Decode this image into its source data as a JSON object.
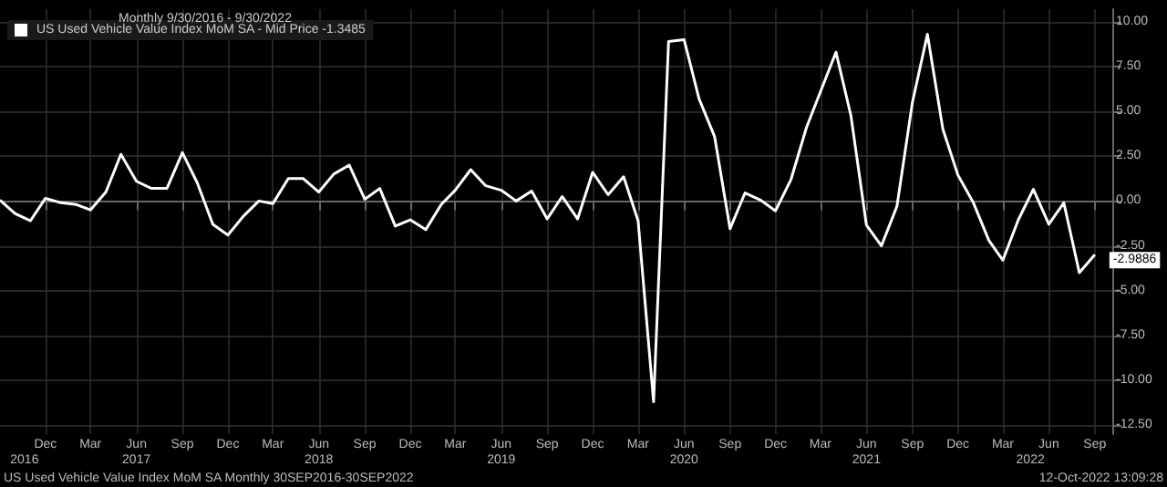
{
  "chart_data": {
    "type": "line",
    "title": "Monthly 9/30/2016 - 9/30/2022",
    "x": [
      "2016-09",
      "2016-10",
      "2016-11",
      "2016-12",
      "2017-01",
      "2017-02",
      "2017-03",
      "2017-04",
      "2017-05",
      "2017-06",
      "2017-07",
      "2017-08",
      "2017-09",
      "2017-10",
      "2017-11",
      "2017-12",
      "2018-01",
      "2018-02",
      "2018-03",
      "2018-04",
      "2018-05",
      "2018-06",
      "2018-07",
      "2018-08",
      "2018-09",
      "2018-10",
      "2018-11",
      "2018-12",
      "2019-01",
      "2019-02",
      "2019-03",
      "2019-04",
      "2019-05",
      "2019-06",
      "2019-07",
      "2019-08",
      "2019-09",
      "2019-10",
      "2019-11",
      "2019-12",
      "2020-01",
      "2020-02",
      "2020-03",
      "2020-04",
      "2020-05",
      "2020-06",
      "2020-07",
      "2020-08",
      "2020-09",
      "2020-10",
      "2020-11",
      "2020-12",
      "2021-01",
      "2021-02",
      "2021-03",
      "2021-04",
      "2021-05",
      "2021-06",
      "2021-07",
      "2021-08",
      "2021-09",
      "2021-10",
      "2021-11",
      "2021-12",
      "2022-01",
      "2022-02",
      "2022-03",
      "2022-04",
      "2022-05",
      "2022-06",
      "2022-07",
      "2022-08",
      "2022-09"
    ],
    "series": [
      {
        "name": "US Used Vehicle Value Index MoM SA - Mid Price -1.3485",
        "color": "#ffffff",
        "values": [
          0.05,
          -0.7,
          -1.1,
          0.15,
          -0.1,
          -0.2,
          -0.5,
          0.5,
          2.6,
          1.1,
          0.7,
          0.7,
          2.7,
          1.0,
          -1.3,
          -1.9,
          -0.85,
          0.0,
          -0.15,
          1.25,
          1.25,
          0.5,
          1.5,
          2.0,
          0.1,
          0.7,
          -1.4,
          -1.05,
          -1.6,
          -0.2,
          0.6,
          1.75,
          0.85,
          0.6,
          0.0,
          0.55,
          -1.0,
          0.25,
          -1.0,
          1.6,
          0.35,
          1.35,
          -1.1,
          -11.2,
          8.9,
          9.0,
          5.7,
          3.6,
          -1.55,
          0.45,
          0.05,
          -0.55,
          1.2,
          4.1,
          6.1,
          8.3,
          4.75,
          -1.35,
          -2.5,
          -0.3,
          5.5,
          9.3,
          4.0,
          1.45,
          -0.1,
          -2.2,
          -3.3,
          -1.05,
          0.65,
          -1.3,
          -0.1,
          -4.0,
          -2.9886
        ],
        "value_labels": [
          null,
          null,
          null,
          null,
          null,
          null,
          null,
          null,
          null,
          null,
          null,
          null,
          null,
          null,
          null,
          null,
          null,
          null,
          null,
          null,
          null,
          null,
          null,
          null,
          null,
          null,
          null,
          null,
          null,
          null,
          null,
          null,
          null,
          null,
          null,
          null,
          null,
          null,
          null,
          null,
          null,
          null,
          null,
          null,
          null,
          null,
          null,
          null,
          null,
          null,
          null,
          null,
          null,
          null,
          null,
          null,
          null,
          null,
          null,
          null,
          null,
          null,
          null,
          null,
          null,
          null,
          null,
          null,
          null,
          null,
          null,
          null,
          "-2.9886"
        ]
      }
    ],
    "xlim": [
      "2016-09",
      "2022-10-06"
    ],
    "x2lim": [
      "2016-09",
      "2022-10-06"
    ],
    "x2ticks": [
      {
        "value": "2016-10-20",
        "label": "2016"
      },
      {
        "value": "2017-06",
        "label": "2017"
      },
      {
        "value": "2018-06",
        "label": "2018"
      },
      {
        "value": "2019-06",
        "label": "2019"
      },
      {
        "value": "2020-06",
        "label": "2020"
      },
      {
        "value": "2021-06",
        "label": "2021"
      },
      {
        "value": "2022-04-25",
        "label": "2022"
      }
    ],
    "xticks": [
      {
        "value": "2016-12",
        "label": "Dec"
      },
      {
        "value": "2017-03",
        "label": "Mar"
      },
      {
        "value": "2017-06",
        "label": "Jun"
      },
      {
        "value": "2017-09",
        "label": "Sep"
      },
      {
        "value": "2017-12",
        "label": "Dec"
      },
      {
        "value": "2018-03",
        "label": "Mar"
      },
      {
        "value": "2018-06",
        "label": "Jun"
      },
      {
        "value": "2018-09",
        "label": "Sep"
      },
      {
        "value": "2018-12",
        "label": "Dec"
      },
      {
        "value": "2019-03",
        "label": "Mar"
      },
      {
        "value": "2019-06",
        "label": "Jun"
      },
      {
        "value": "2019-09",
        "label": "Sep"
      },
      {
        "value": "2019-12",
        "label": "Dec"
      },
      {
        "value": "2020-03",
        "label": "Mar"
      },
      {
        "value": "2020-06",
        "label": "Jun"
      },
      {
        "value": "2020-09",
        "label": "Sep"
      },
      {
        "value": "2020-12",
        "label": "Dec"
      },
      {
        "value": "2021-03",
        "label": "Mar"
      },
      {
        "value": "2021-06",
        "label": "Jun"
      },
      {
        "value": "2021-09",
        "label": "Sep"
      },
      {
        "value": "2021-12",
        "label": "Dec"
      },
      {
        "value": "2022-03",
        "label": "Mar"
      },
      {
        "value": "2022-06",
        "label": "Jun"
      },
      {
        "value": "2022-09",
        "label": "Sep"
      }
    ],
    "ylim": [
      -13,
      10.7
    ],
    "yticks": [
      {
        "value": 10,
        "label": "10.00"
      },
      {
        "value": 7.5,
        "label": "7.50"
      },
      {
        "value": 5,
        "label": "5.00"
      },
      {
        "value": 2.5,
        "label": "2.50"
      },
      {
        "value": 0,
        "label": "0.00"
      },
      {
        "value": -2.5,
        "label": "-2.50"
      },
      {
        "value": -5,
        "label": "-5.00"
      },
      {
        "value": -7.5,
        "label": "-7.50"
      },
      {
        "value": -10,
        "label": "-10.00"
      },
      {
        "value": -12.5,
        "label": "-12.50"
      }
    ],
    "grid": true,
    "legend": "top left",
    "marker": "none",
    "line_style": "solid",
    "annotations": [
      "US Used Vehicle Value Index MoM SA Monthly 30SEP2016-30SEP2022",
      "12-Oct-2022 13:09:28"
    ]
  }
}
